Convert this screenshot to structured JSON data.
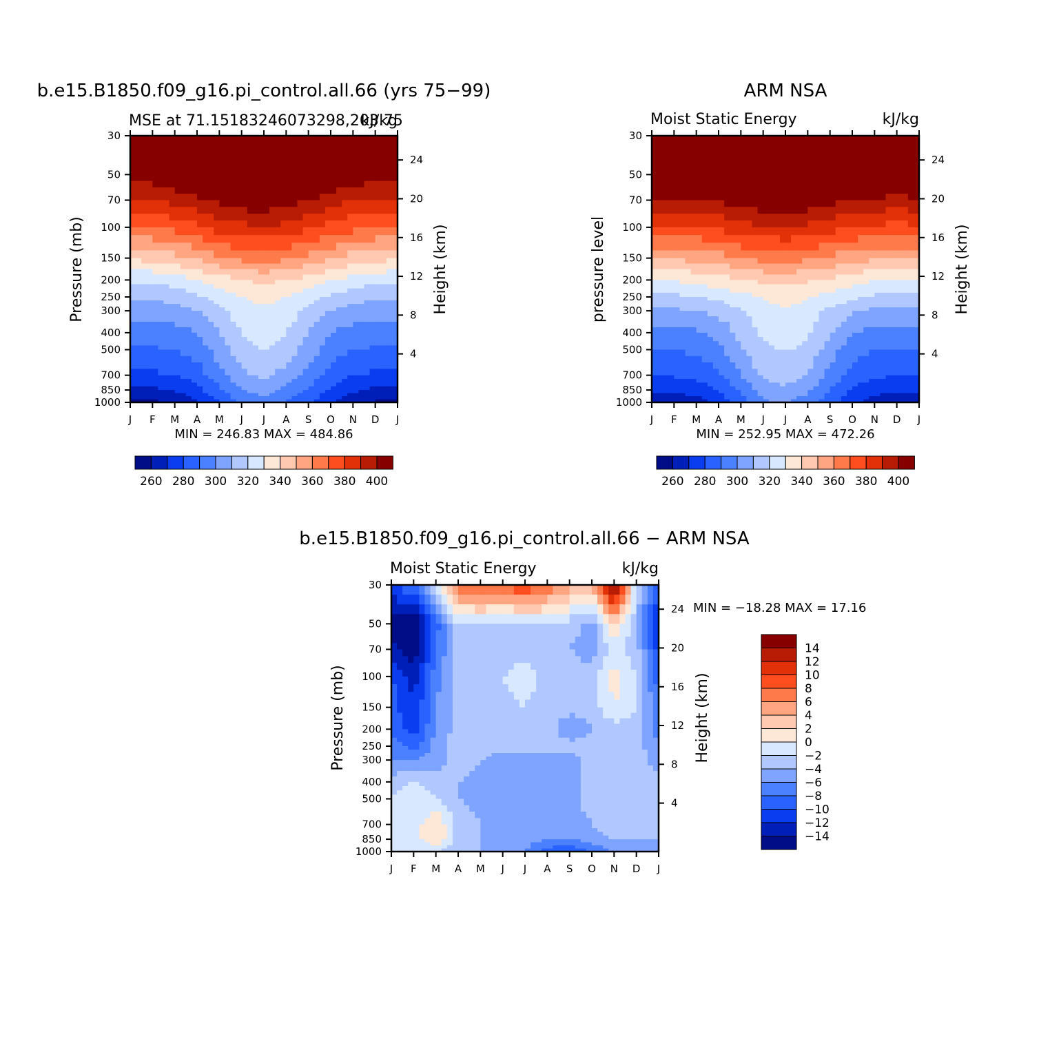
{
  "months": [
    "J",
    "F",
    "M",
    "A",
    "M",
    "J",
    "J",
    "A",
    "S",
    "O",
    "N",
    "D",
    "J"
  ],
  "pressure_ticks": [
    30,
    50,
    70,
    100,
    150,
    200,
    250,
    300,
    400,
    500,
    700,
    850,
    1000
  ],
  "height_ticks": [
    4,
    8,
    12,
    16,
    20,
    24
  ],
  "panel_model": {
    "title": "b.e15.B1850.f09_g16.pi_control.all.66 (yrs 75−99)",
    "left_label": "MSE at 71.15183246073298,203.75",
    "right_label": "kJ/kg",
    "ylabel": "Pressure (mb)",
    "ylabel_right": "Height (km)",
    "minmax": "MIN = 246.83 MAX = 484.86"
  },
  "panel_obs": {
    "title": "ARM NSA",
    "left_label": "Moist Static Energy",
    "right_label": "kJ/kg",
    "ylabel": "pressure level",
    "ylabel_right": "Height (km)",
    "minmax": "MIN = 252.95 MAX = 472.26"
  },
  "panel_diff": {
    "title": "b.e15.B1850.f09_g16.pi_control.all.66 − ARM NSA",
    "left_label": "Moist Static Energy",
    "right_label": "kJ/kg",
    "ylabel": "Pressure (mb)",
    "ylabel_right": "Height (km)",
    "minmax": "MIN = −18.28 MAX = 17.16"
  },
  "colorbar_abs": {
    "labels": [
      "260",
      "280",
      "300",
      "320",
      "340",
      "360",
      "380",
      "400"
    ],
    "colors": [
      "#000d86",
      "#001fb8",
      "#0a3df0",
      "#2962ff",
      "#4b80ff",
      "#7ea4ff",
      "#b0c8ff",
      "#d8e8ff",
      "#fde8d8",
      "#ffc8b0",
      "#ffa582",
      "#ff7a4a",
      "#fe4d1e",
      "#e23008",
      "#b81c05",
      "#870000"
    ]
  },
  "colorbar_diff": {
    "labels": [
      "14",
      "12",
      "10",
      "8",
      "6",
      "4",
      "2",
      "0",
      "−2",
      "−4",
      "−6",
      "−8",
      "−10",
      "−12",
      "−14"
    ],
    "colors": [
      "#870000",
      "#b81c05",
      "#e23008",
      "#fe4d1e",
      "#ff7a4a",
      "#ffa582",
      "#ffc8b0",
      "#fde8d8",
      "#d8e8ff",
      "#b0c8ff",
      "#7ea4ff",
      "#4b80ff",
      "#2962ff",
      "#0a3df0",
      "#001fb8",
      "#000d86"
    ]
  },
  "chart_data": [
    {
      "type": "heatmap",
      "title": "b.e15.B1850.f09_g16.pi_control.all.66 (yrs 75−99)",
      "subtitle": "MSE at 71.15183246073298,203.75",
      "units": "kJ/kg",
      "xlabel": "",
      "ylabel": "Pressure (mb)",
      "x": [
        "J",
        "F",
        "M",
        "A",
        "M",
        "J",
        "J",
        "A",
        "S",
        "O",
        "N",
        "D",
        "J"
      ],
      "y": [
        30,
        50,
        70,
        100,
        150,
        200,
        250,
        300,
        400,
        500,
        700,
        850,
        1000
      ],
      "ylim": [
        1000,
        30
      ],
      "clevels": [
        260,
        270,
        280,
        290,
        300,
        310,
        320,
        330,
        340,
        350,
        360,
        370,
        380,
        390,
        400
      ],
      "min": 246.83,
      "max": 484.86,
      "z": [
        [
          420,
          420,
          420,
          420,
          420,
          420,
          420,
          420,
          420,
          420,
          420,
          420,
          420
        ],
        [
          405,
          406,
          410,
          415,
          420,
          420,
          420,
          420,
          418,
          412,
          408,
          405,
          405
        ],
        [
          388,
          390,
          393,
          398,
          403,
          407,
          408,
          405,
          400,
          395,
          390,
          388,
          388
        ],
        [
          368,
          370,
          373,
          378,
          384,
          387,
          389,
          387,
          382,
          377,
          373,
          370,
          368
        ],
        [
          342,
          343,
          347,
          352,
          358,
          363,
          365,
          362,
          357,
          351,
          346,
          343,
          342
        ],
        [
          322,
          322,
          325,
          330,
          335,
          340,
          342,
          340,
          336,
          330,
          326,
          323,
          322
        ],
        [
          311,
          312,
          314,
          318,
          324,
          330,
          333,
          330,
          325,
          318,
          314,
          312,
          311
        ],
        [
          304,
          305,
          306,
          310,
          318,
          325,
          328,
          325,
          318,
          310,
          306,
          305,
          304
        ],
        [
          294,
          295,
          296,
          300,
          310,
          320,
          325,
          320,
          310,
          300,
          296,
          295,
          294
        ],
        [
          288,
          289,
          290,
          294,
          305,
          316,
          320,
          315,
          305,
          295,
          290,
          289,
          288
        ],
        [
          277,
          278,
          280,
          285,
          296,
          308,
          312,
          306,
          296,
          286,
          280,
          278,
          277
        ],
        [
          266,
          268,
          271,
          277,
          288,
          300,
          304,
          298,
          289,
          278,
          272,
          268,
          266
        ],
        [
          256,
          258,
          262,
          268,
          280,
          293,
          297,
          290,
          282,
          270,
          263,
          259,
          256
        ]
      ]
    },
    {
      "type": "heatmap",
      "title": "ARM NSA",
      "subtitle": "Moist Static Energy",
      "units": "kJ/kg",
      "xlabel": "",
      "ylabel": "pressure level",
      "x": [
        "J",
        "F",
        "M",
        "A",
        "M",
        "J",
        "J",
        "A",
        "S",
        "O",
        "N",
        "D",
        "J"
      ],
      "y": [
        30,
        50,
        70,
        100,
        150,
        200,
        250,
        300,
        400,
        500,
        700,
        850,
        1000
      ],
      "ylim": [
        1000,
        30
      ],
      "clevels": [
        260,
        270,
        280,
        290,
        300,
        310,
        320,
        330,
        340,
        350,
        360,
        370,
        380,
        390,
        400
      ],
      "min": 252.95,
      "max": 472.26,
      "z": [
        [
          420,
          420,
          420,
          420,
          420,
          420,
          420,
          420,
          420,
          420,
          420,
          420,
          420
        ],
        [
          418,
          418,
          418,
          420,
          420,
          420,
          420,
          420,
          420,
          420,
          418,
          418,
          418
        ],
        [
          398,
          398,
          399,
          402,
          405,
          408,
          409,
          407,
          403,
          400,
          398,
          397,
          398
        ],
        [
          378,
          378,
          379,
          382,
          386,
          389,
          390,
          388,
          384,
          380,
          378,
          377,
          378
        ],
        [
          352,
          352,
          353,
          356,
          360,
          363,
          364,
          362,
          358,
          354,
          352,
          351,
          352
        ],
        [
          331,
          331,
          333,
          336,
          339,
          342,
          344,
          341,
          338,
          334,
          331,
          330,
          331
        ],
        [
          318,
          318,
          320,
          323,
          327,
          331,
          334,
          331,
          327,
          322,
          318,
          317,
          318
        ],
        [
          308,
          308,
          310,
          313,
          319,
          325,
          329,
          325,
          318,
          311,
          308,
          307,
          308
        ],
        [
          297,
          297,
          298,
          303,
          313,
          322,
          325,
          321,
          311,
          300,
          297,
          296,
          297
        ],
        [
          290,
          290,
          292,
          297,
          309,
          318,
          321,
          317,
          305,
          294,
          290,
          289,
          290
        ],
        [
          281,
          281,
          283,
          289,
          300,
          312,
          315,
          309,
          297,
          287,
          282,
          280,
          281
        ],
        [
          272,
          272,
          274,
          280,
          292,
          305,
          308,
          302,
          290,
          279,
          273,
          271,
          272
        ],
        [
          263,
          263,
          266,
          273,
          285,
          298,
          301,
          295,
          284,
          273,
          266,
          263,
          263
        ]
      ]
    },
    {
      "type": "heatmap",
      "title": "b.e15.B1850.f09_g16.pi_control.all.66 − ARM NSA",
      "subtitle": "Moist Static Energy",
      "units": "kJ/kg",
      "xlabel": "",
      "ylabel": "Pressure (mb)",
      "x": [
        "J",
        "F",
        "M",
        "A",
        "M",
        "J",
        "J",
        "A",
        "S",
        "O",
        "N",
        "D",
        "J"
      ],
      "y": [
        30,
        50,
        70,
        100,
        150,
        200,
        250,
        300,
        400,
        500,
        700,
        850,
        1000
      ],
      "ylim": [
        1000,
        30
      ],
      "clevels": [
        -14,
        -12,
        -10,
        -8,
        -6,
        -4,
        -2,
        0,
        2,
        4,
        6,
        8,
        10,
        12,
        14
      ],
      "min": -18.28,
      "max": 17.16,
      "z": [
        [
          -10,
          -8,
          0,
          8,
          9,
          9,
          10,
          8,
          5,
          4,
          17,
          -2,
          -10
        ],
        [
          -16,
          -17,
          -9,
          -2,
          -2,
          -3,
          -2,
          -2,
          -3,
          -5,
          2,
          -4,
          -12
        ],
        [
          -13,
          -16,
          -8,
          -3,
          -3,
          -3,
          -3,
          -3,
          -4,
          -5,
          -1,
          -3,
          -11
        ],
        [
          -10,
          -13,
          -7,
          -3,
          -3,
          -2,
          -1,
          -3,
          -3,
          -3,
          1,
          -2,
          -9
        ],
        [
          -9,
          -12,
          -6,
          -3,
          -3,
          -3,
          -2,
          -3,
          -3,
          -3,
          0,
          -2,
          -8
        ],
        [
          -9,
          -11,
          -6,
          -3,
          -3,
          -3,
          -3,
          -3,
          -6,
          -4,
          -3,
          -3,
          -7
        ],
        [
          -7,
          -9,
          -5,
          -3,
          -3,
          -3,
          -3,
          -3,
          -3,
          -3,
          -3,
          -3,
          -6
        ],
        [
          -6,
          -6,
          -5,
          -3,
          -4,
          -5,
          -5,
          -5,
          -5,
          -3,
          -3,
          -3,
          -5
        ],
        [
          -3,
          -2,
          -3,
          -4,
          -5,
          -5,
          -5,
          -5,
          -5,
          -3,
          -3,
          -2,
          -3
        ],
        [
          -2,
          -1,
          -2,
          -4,
          -5,
          -5,
          -5,
          -5,
          -5,
          -3,
          -3,
          -3,
          -3
        ],
        [
          -1,
          -1,
          2,
          -3,
          -4,
          -5,
          -5,
          -5,
          -5,
          -4,
          -3,
          -3,
          -3
        ],
        [
          0,
          -1,
          2,
          -3,
          -4,
          -5,
          -5,
          -6,
          -6,
          -5,
          -4,
          -4,
          -4
        ],
        [
          -1,
          -2,
          -2,
          -3,
          -4,
          -5,
          -6,
          -9,
          -10,
          -8,
          -6,
          -6,
          -6
        ]
      ]
    }
  ]
}
